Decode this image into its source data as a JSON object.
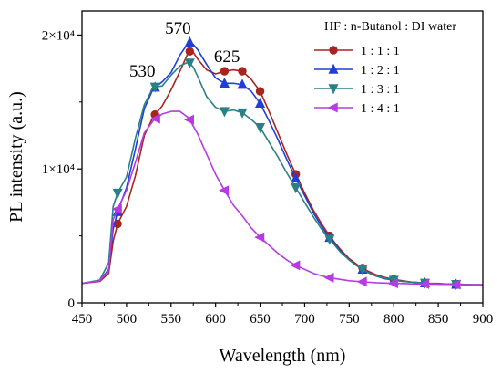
{
  "chart_data": {
    "type": "line",
    "xlabel": "Wavelength (nm)",
    "ylabel": "PL intensity (a.u.)",
    "xlim": [
      450,
      900
    ],
    "ylim": [
      0,
      21800
    ],
    "x_ticks": [
      {
        "value": 450,
        "label": "450"
      },
      {
        "value": 500,
        "label": "500"
      },
      {
        "value": 550,
        "label": "550"
      },
      {
        "value": 600,
        "label": "600"
      },
      {
        "value": 650,
        "label": "650"
      },
      {
        "value": 700,
        "label": "700"
      },
      {
        "value": 750,
        "label": "750"
      },
      {
        "value": 800,
        "label": "800"
      },
      {
        "value": 850,
        "label": "850"
      },
      {
        "value": 900,
        "label": "900"
      }
    ],
    "y_ticks": [
      {
        "value": 0,
        "label": "0"
      },
      {
        "value": 10000,
        "label": "1×10⁴"
      },
      {
        "value": 20000,
        "label": "2×10⁴"
      }
    ],
    "grid": false,
    "legend": {
      "title": "HF : n-Butanol : DI water",
      "placement": "top-right"
    },
    "annotations": [
      {
        "text": "530",
        "x": 530,
        "y": 16900
      },
      {
        "text": "570",
        "x": 570,
        "y": 20100
      },
      {
        "text": "625",
        "x": 625,
        "y": 18000
      }
    ],
    "series": [
      {
        "name": "1 : 1 : 1",
        "color": "#a8241e",
        "marker": "circle",
        "x": [
          450,
          470,
          480,
          485,
          490,
          500,
          510,
          520,
          530,
          540,
          550,
          560,
          570,
          575,
          580,
          590,
          600,
          610,
          620,
          630,
          640,
          650,
          660,
          670,
          680,
          690,
          700,
          710,
          720,
          730,
          740,
          750,
          760,
          770,
          780,
          790,
          800,
          810,
          820,
          830,
          840,
          850,
          860,
          870,
          880,
          890,
          900
        ],
        "y": [
          1450,
          1600,
          2200,
          4600,
          5900,
          7200,
          9500,
          12500,
          13900,
          14700,
          15900,
          17300,
          18800,
          18700,
          18200,
          17400,
          17100,
          17300,
          17400,
          17300,
          16700,
          15800,
          14300,
          12700,
          11100,
          9600,
          8200,
          6900,
          5800,
          4800,
          4000,
          3300,
          2800,
          2400,
          2100,
          1900,
          1750,
          1650,
          1550,
          1500,
          1450,
          1450,
          1400,
          1400,
          1380,
          1350,
          1350
        ],
        "markers_x": [
          490,
          532,
          571,
          610,
          630,
          650,
          690,
          728,
          765,
          800,
          835,
          870
        ]
      },
      {
        "name": "1 : 2 : 1",
        "color": "#1f3fd6",
        "marker": "triangle-up",
        "x": [
          450,
          470,
          480,
          485,
          490,
          500,
          510,
          520,
          530,
          540,
          550,
          560,
          570,
          575,
          580,
          590,
          600,
          610,
          620,
          630,
          640,
          650,
          660,
          670,
          680,
          690,
          700,
          710,
          720,
          730,
          740,
          750,
          760,
          770,
          780,
          790,
          800,
          810,
          820,
          830,
          840,
          850,
          860,
          870,
          880,
          890,
          900
        ],
        "y": [
          1450,
          1650,
          2500,
          5500,
          6800,
          8600,
          11500,
          14500,
          16000,
          16500,
          17200,
          18500,
          19500,
          19300,
          18900,
          17800,
          16800,
          16400,
          16400,
          16300,
          15800,
          14900,
          13600,
          12200,
          10700,
          9300,
          8000,
          6700,
          5600,
          4700,
          3900,
          3200,
          2700,
          2300,
          2000,
          1800,
          1700,
          1600,
          1550,
          1500,
          1450,
          1420,
          1400,
          1380,
          1360,
          1350,
          1350
        ],
        "markers_x": [
          490,
          532,
          571,
          610,
          630,
          650,
          690,
          728,
          765,
          800,
          835,
          870
        ]
      },
      {
        "name": "1 : 3 : 1",
        "color": "#2b7f86",
        "marker": "triangle-down",
        "x": [
          450,
          470,
          480,
          485,
          490,
          500,
          510,
          520,
          530,
          540,
          550,
          560,
          570,
          575,
          580,
          590,
          600,
          610,
          620,
          630,
          640,
          650,
          660,
          670,
          680,
          690,
          700,
          710,
          720,
          730,
          740,
          750,
          760,
          770,
          780,
          790,
          800,
          810,
          820,
          830,
          840,
          850,
          860,
          870,
          880,
          890,
          900
        ],
        "y": [
          1450,
          1700,
          3000,
          7200,
          8200,
          9400,
          12300,
          14800,
          16100,
          16200,
          17000,
          17700,
          18000,
          17600,
          16900,
          15400,
          14600,
          14300,
          14400,
          14200,
          13700,
          13100,
          12000,
          10900,
          9700,
          8600,
          7500,
          6400,
          5400,
          4600,
          3800,
          3200,
          2700,
          2300,
          2000,
          1850,
          1700,
          1600,
          1550,
          1500,
          1450,
          1420,
          1400,
          1380,
          1360,
          1350,
          1350
        ],
        "markers_x": [
          490,
          532,
          571,
          610,
          630,
          650,
          690,
          728,
          765,
          800,
          835,
          870
        ]
      },
      {
        "name": "1 : 4 : 1",
        "color": "#b63be0",
        "marker": "triangle-left",
        "x": [
          450,
          470,
          480,
          485,
          490,
          500,
          510,
          520,
          530,
          540,
          550,
          560,
          570,
          580,
          590,
          600,
          610,
          620,
          630,
          640,
          650,
          660,
          670,
          680,
          690,
          700,
          710,
          720,
          730,
          740,
          750,
          760,
          770,
          780,
          790,
          800,
          810,
          820,
          830,
          840,
          850,
          860,
          870,
          880,
          890,
          900
        ],
        "y": [
          1450,
          1650,
          2400,
          6200,
          7000,
          8400,
          10500,
          12700,
          13600,
          14100,
          14300,
          14300,
          13800,
          12600,
          11100,
          9600,
          8400,
          7300,
          6500,
          5600,
          4900,
          4300,
          3700,
          3200,
          2800,
          2500,
          2200,
          2000,
          1850,
          1750,
          1650,
          1600,
          1550,
          1500,
          1480,
          1460,
          1440,
          1420,
          1410,
          1400,
          1390,
          1380,
          1370,
          1360,
          1350,
          1350
        ],
        "markers_x": [
          490,
          533,
          571,
          610,
          650,
          690,
          728,
          765,
          800,
          835,
          870
        ]
      }
    ]
  }
}
